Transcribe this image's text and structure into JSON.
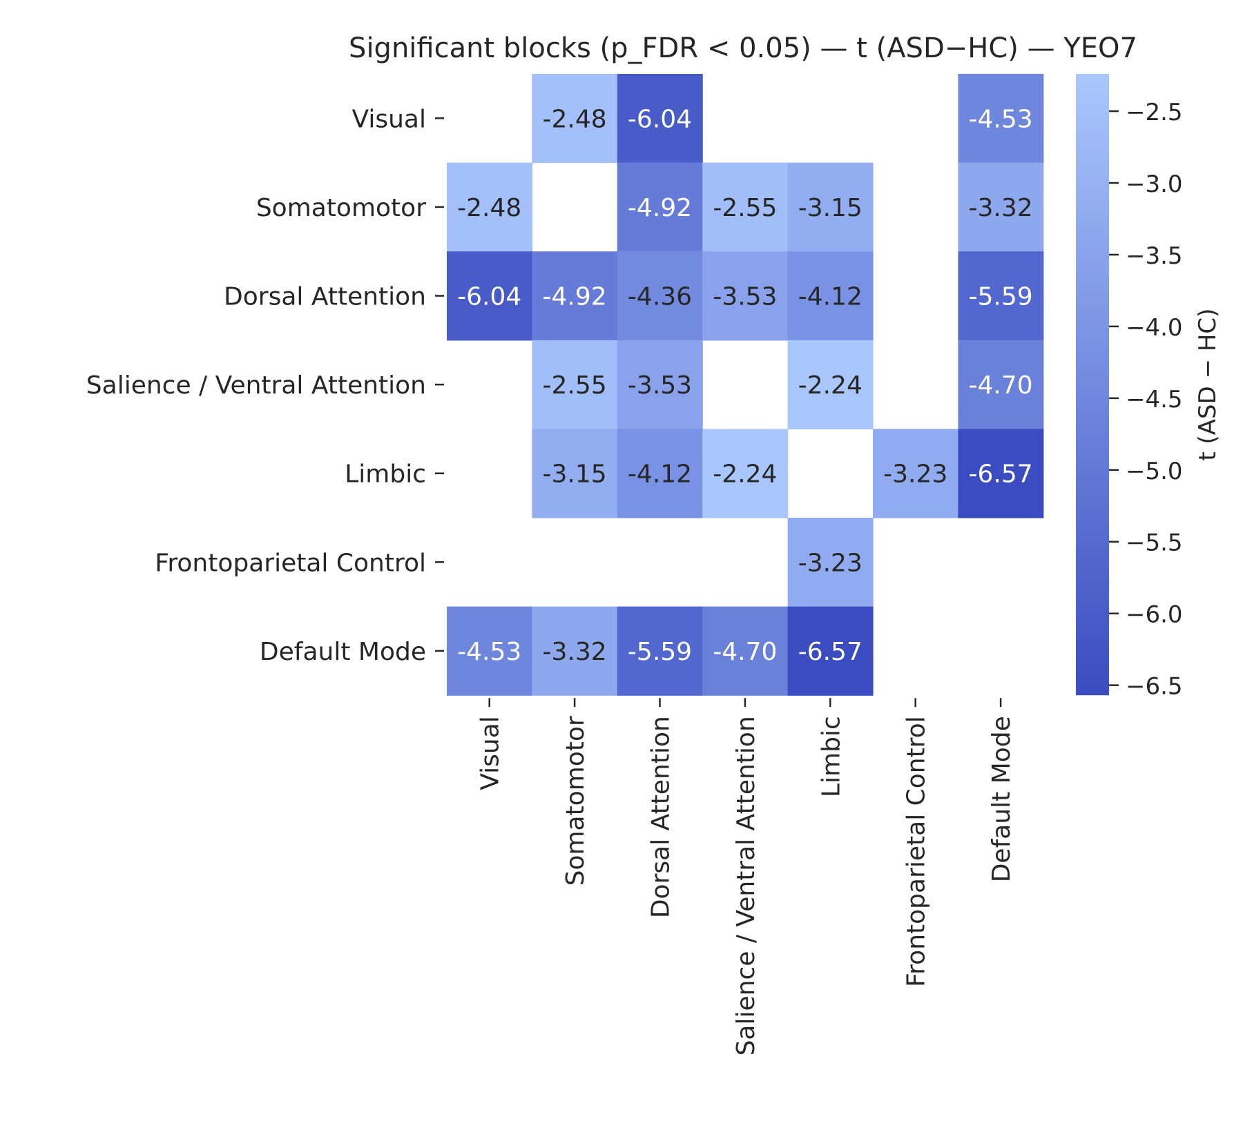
{
  "chart_data": {
    "type": "heatmap",
    "title": "Significant blocks (p_FDR < 0.05) — t (ASD−HC) — YEO7",
    "rows": [
      "Visual",
      "Somatomotor",
      "Dorsal Attention",
      "Salience / Ventral Attention",
      "Limbic",
      "Frontoparietal Control",
      "Default Mode"
    ],
    "columns": [
      "Visual",
      "Somatomotor",
      "Dorsal Attention",
      "Salience / Ventral Attention",
      "Limbic",
      "Frontoparietal Control",
      "Default Mode"
    ],
    "values": [
      [
        null,
        -2.48,
        -6.04,
        null,
        null,
        null,
        -4.53
      ],
      [
        -2.48,
        null,
        -4.92,
        -2.55,
        -3.15,
        null,
        -3.32
      ],
      [
        -6.04,
        -4.92,
        -4.36,
        -3.53,
        -4.12,
        null,
        -5.59
      ],
      [
        null,
        -2.55,
        -3.53,
        null,
        -2.24,
        null,
        -4.7
      ],
      [
        null,
        -3.15,
        -4.12,
        -2.24,
        null,
        -3.23,
        -6.57
      ],
      [
        null,
        null,
        null,
        null,
        -3.23,
        null,
        null
      ],
      [
        -4.53,
        -3.32,
        -5.59,
        -4.7,
        -6.57,
        null,
        null
      ]
    ],
    "value_format": "0.00",
    "colorbar": {
      "label": "t (ASD − HC)",
      "range": [
        -6.57,
        -2.24
      ],
      "ticks": [
        -2.5,
        -3.0,
        -3.5,
        -4.0,
        -4.5,
        -5.0,
        -5.5,
        -6.0,
        -6.5
      ],
      "tick_labels": [
        "−2.5",
        "−3.0",
        "−3.5",
        "−4.0",
        "−4.5",
        "−5.0",
        "−5.5",
        "−6.0",
        "−6.5"
      ],
      "color_low": "#3a4cc0",
      "color_high": "#aac7fd"
    },
    "text_color_dark_cells": "#ffffff",
    "text_color_light_cells": "#262626"
  }
}
